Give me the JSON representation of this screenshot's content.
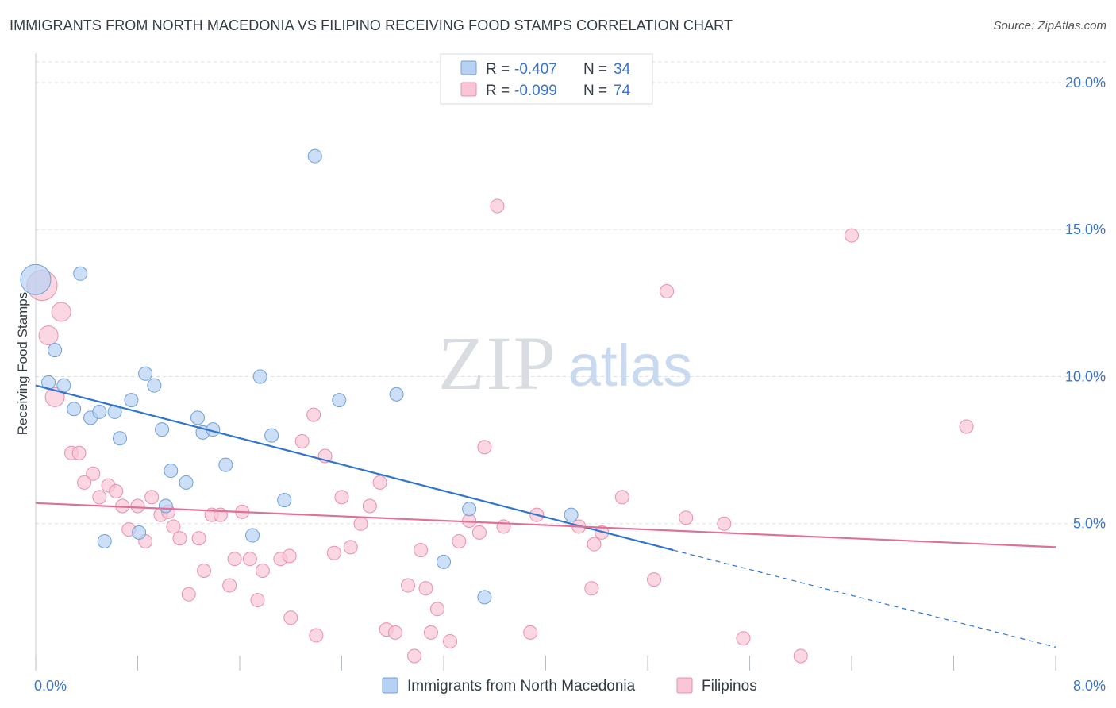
{
  "title": "IMMIGRANTS FROM NORTH MACEDONIA VS FILIPINO RECEIVING FOOD STAMPS CORRELATION CHART",
  "source": "Source: ZipAtlas.com",
  "watermark": {
    "zip": "ZIP",
    "atlas": "atlas"
  },
  "colors": {
    "blue_fill": "#b7d1f2",
    "blue_stroke": "#6f9fd8",
    "blue_line": "#2f74d0",
    "pink_fill": "#f8c6d6",
    "pink_stroke": "#e890ab",
    "pink_line": "#e0709a",
    "axis_text": "#3a73c8",
    "grid": "#dde1e6"
  },
  "stats_box": {
    "rows": [
      {
        "r_label": "R = ",
        "r_value": "-0.407",
        "n_label": "N = ",
        "n_value": "34"
      },
      {
        "r_label": "R = ",
        "r_value": "-0.099",
        "n_label": "N = ",
        "n_value": "74"
      }
    ]
  },
  "legend": {
    "items": [
      {
        "label": "Immigrants from North Macedonia"
      },
      {
        "label": "Filipinos"
      }
    ]
  },
  "chart_data": {
    "type": "scatter",
    "title": "IMMIGRANTS FROM NORTH MACEDONIA VS FILIPINO RECEIVING FOOD STAMPS CORRELATION CHART",
    "xlabel": "",
    "ylabel": "Receiving Food Stamps",
    "xlim": [
      0,
      8
    ],
    "ylim": [
      0,
      20.7
    ],
    "x_tick_labels": [
      "0.0%",
      "8.0%"
    ],
    "y_ticks": [
      5,
      10,
      15,
      20
    ],
    "y_tick_labels": [
      "5.0%",
      "10.0%",
      "15.0%",
      "20.0%"
    ],
    "grid": "horizontal dashed",
    "legend_position": "bottom",
    "series": [
      {
        "name": "Immigrants from North Macedonia",
        "color": "#b7d1f2",
        "r": -0.407,
        "n": 34,
        "trend": {
          "x": [
            0,
            5.0
          ],
          "y": [
            9.7,
            4.1
          ],
          "dashed_to": [
            8.0,
            0.8
          ]
        },
        "points": [
          [
            0.0,
            13.3,
            "large"
          ],
          [
            0.35,
            13.5
          ],
          [
            0.15,
            10.9
          ],
          [
            0.1,
            9.8
          ],
          [
            0.22,
            9.7
          ],
          [
            0.3,
            8.9
          ],
          [
            0.43,
            8.6
          ],
          [
            0.5,
            8.8
          ],
          [
            0.62,
            8.8
          ],
          [
            0.66,
            7.9
          ],
          [
            0.75,
            9.2
          ],
          [
            0.86,
            10.1
          ],
          [
            0.93,
            9.7
          ],
          [
            0.99,
            8.2
          ],
          [
            1.06,
            6.8
          ],
          [
            1.18,
            6.4
          ],
          [
            1.27,
            8.6
          ],
          [
            1.31,
            8.1
          ],
          [
            1.39,
            8.2
          ],
          [
            1.49,
            7.0
          ],
          [
            1.76,
            10.0
          ],
          [
            1.85,
            8.0
          ],
          [
            1.95,
            5.8
          ],
          [
            2.19,
            17.5
          ],
          [
            2.38,
            9.2
          ],
          [
            2.83,
            9.4
          ],
          [
            3.2,
            3.7
          ],
          [
            3.4,
            5.5
          ],
          [
            3.52,
            2.5
          ],
          [
            4.2,
            5.3
          ],
          [
            0.54,
            4.4
          ],
          [
            0.81,
            4.7
          ],
          [
            1.02,
            5.6
          ],
          [
            1.7,
            4.6
          ]
        ]
      },
      {
        "name": "Filipinos",
        "color": "#f8c6d6",
        "r": -0.099,
        "n": 74,
        "trend": {
          "x": [
            0,
            8.0
          ],
          "y": [
            5.7,
            4.2
          ]
        },
        "points": [
          [
            0.05,
            13.1,
            "large"
          ],
          [
            0.2,
            12.2,
            "medium"
          ],
          [
            0.1,
            11.4,
            "medium"
          ],
          [
            0.15,
            9.3,
            "medium"
          ],
          [
            0.28,
            7.4
          ],
          [
            0.34,
            7.4
          ],
          [
            0.45,
            6.7
          ],
          [
            0.38,
            6.4
          ],
          [
            0.5,
            5.9
          ],
          [
            0.57,
            6.3
          ],
          [
            0.63,
            6.1
          ],
          [
            0.68,
            5.6
          ],
          [
            0.73,
            4.8
          ],
          [
            0.8,
            5.6
          ],
          [
            0.86,
            4.4
          ],
          [
            0.91,
            5.9
          ],
          [
            0.98,
            5.3
          ],
          [
            1.04,
            5.4
          ],
          [
            1.08,
            4.9
          ],
          [
            1.13,
            4.5
          ],
          [
            1.2,
            2.6
          ],
          [
            1.28,
            4.5
          ],
          [
            1.32,
            3.4
          ],
          [
            1.38,
            5.3
          ],
          [
            1.45,
            5.3
          ],
          [
            1.52,
            2.9
          ],
          [
            1.56,
            3.8
          ],
          [
            1.62,
            5.4
          ],
          [
            1.68,
            3.8
          ],
          [
            1.74,
            2.4
          ],
          [
            1.78,
            3.4
          ],
          [
            1.92,
            3.8
          ],
          [
            1.99,
            3.9
          ],
          [
            2.0,
            1.8
          ],
          [
            2.09,
            7.8
          ],
          [
            2.18,
            8.7
          ],
          [
            2.2,
            1.2
          ],
          [
            2.27,
            7.3
          ],
          [
            2.34,
            4.0
          ],
          [
            2.4,
            5.9
          ],
          [
            2.47,
            4.2
          ],
          [
            2.55,
            5.0
          ],
          [
            2.62,
            5.6
          ],
          [
            2.7,
            6.4
          ],
          [
            2.75,
            1.4
          ],
          [
            2.82,
            1.3
          ],
          [
            2.92,
            2.9
          ],
          [
            2.97,
            0.5
          ],
          [
            3.02,
            4.1
          ],
          [
            3.06,
            2.8
          ],
          [
            3.1,
            1.3
          ],
          [
            3.15,
            2.1
          ],
          [
            3.25,
            1.0
          ],
          [
            3.32,
            4.4
          ],
          [
            3.4,
            5.1
          ],
          [
            3.48,
            4.7
          ],
          [
            3.52,
            7.6
          ],
          [
            3.62,
            15.8
          ],
          [
            3.67,
            4.9
          ],
          [
            3.88,
            1.3
          ],
          [
            3.93,
            5.3
          ],
          [
            4.26,
            4.9
          ],
          [
            4.36,
            2.8
          ],
          [
            4.38,
            4.3
          ],
          [
            4.44,
            4.7
          ],
          [
            4.6,
            5.9
          ],
          [
            4.85,
            3.1
          ],
          [
            4.95,
            12.9
          ],
          [
            5.1,
            5.2
          ],
          [
            5.4,
            5.0
          ],
          [
            5.55,
            1.1
          ],
          [
            6.0,
            0.5
          ],
          [
            6.4,
            14.8
          ],
          [
            7.3,
            8.3
          ]
        ]
      }
    ]
  }
}
